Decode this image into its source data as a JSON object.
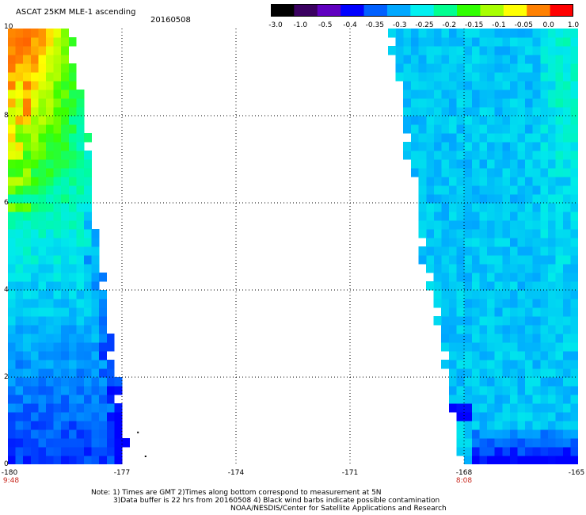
{
  "title": "ASCAT 25KM MLE-1 ascending",
  "date": "20160508",
  "colorbar": {
    "tick_labels": [
      "-3.0",
      "-1.0",
      "-0.5",
      "-0.4",
      "-0.35",
      "-0.3",
      "-0.25",
      "-0.2",
      "-0.15",
      "-0.1",
      "-0.05",
      "0.0",
      "1.0"
    ],
    "colors": [
      "#000000",
      "#3a0060",
      "#6000c0",
      "#0000ff",
      "#0060ff",
      "#00a8ff",
      "#00f0f0",
      "#00ff90",
      "#30ff00",
      "#a8ff00",
      "#ffff00",
      "#ff8000",
      "#ff0000"
    ]
  },
  "axes": {
    "x_labels": [
      "-180",
      "-177",
      "-174",
      "-171",
      "-168",
      "-165"
    ],
    "y_labels": [
      "0",
      "2",
      "4",
      "6",
      "8",
      "10"
    ],
    "grid": "dotted",
    "time_labels": [
      {
        "lon": -180,
        "text": "9:48"
      },
      {
        "lon": -168,
        "text": "8:08"
      }
    ]
  },
  "swaths": [
    {
      "name": "left-swath",
      "edge_right_lon_at_lat10": -178.2,
      "edge_right_lon_at_lat0": -176.8
    },
    {
      "name": "right-swath",
      "edge_left_lon_at_lat10": -170.1,
      "edge_left_lon_at_lat0": -168.2
    }
  ],
  "notes": {
    "line1": "Note: 1) Times are GMT 2)Times along bottom correspond to measurement at 5N",
    "line2": "3)Data buffer is 22 hrs from 20160508 4) Black wind barbs indicate possible contamination",
    "line3": "NOAA/NESDIS/Center for Satellite Applications and Research"
  }
}
